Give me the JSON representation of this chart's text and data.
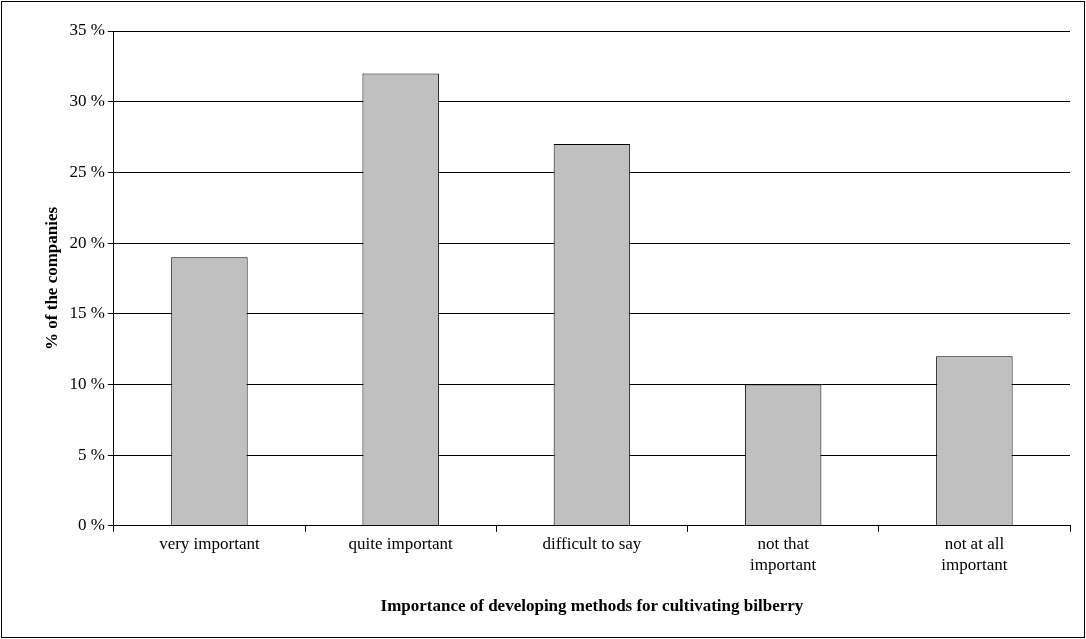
{
  "chart_data": {
    "type": "bar",
    "xlabel": "Importance of developing methods for cultivating bilberry",
    "ylabel": "% of the companies",
    "categories": [
      "very important",
      "quite important",
      "difficult to say",
      "not that important",
      "not at all important"
    ],
    "values": [
      19,
      32,
      27,
      10,
      12
    ],
    "color": "#c0c0c0",
    "ylim": [
      0,
      35
    ],
    "yticks": [
      {
        "value": 0,
        "label": "0 %"
      },
      {
        "value": 5,
        "label": "5 %"
      },
      {
        "value": 10,
        "label": "10 %"
      },
      {
        "value": 15,
        "label": "15 %"
      },
      {
        "value": 20,
        "label": "20 %"
      },
      {
        "value": 25,
        "label": "25 %"
      },
      {
        "value": 30,
        "label": "30 %"
      },
      {
        "value": 35,
        "label": "35 %"
      }
    ],
    "grid": "y",
    "legend": false
  }
}
